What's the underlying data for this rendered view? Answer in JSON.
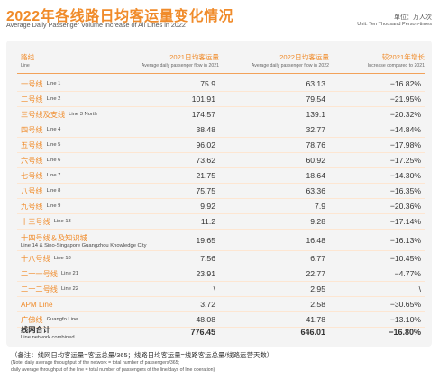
{
  "title": "2022年各线路日均客运量变化情况",
  "subtitle": "Average Daily Passenger Volume Increase of All Lines in 2022",
  "unit_zh": "单位：万人次",
  "unit_en": "Unit: Ten Thousand Person-times",
  "headers": {
    "line_zh": "路线",
    "line_en": "Line",
    "y2021_zh": "2021日均客运量",
    "y2021_en": "Average daily passenger flow in 2021",
    "y2022_zh": "2022日均客运量",
    "y2022_en": "Average daily passenger flow in 2022",
    "growth_zh": "较2021年增长",
    "growth_en": "Increase compared to 2021"
  },
  "rows": [
    {
      "zh": "一号线",
      "en": "Line 1",
      "v2021": "75.9",
      "v2022": "63.13",
      "growth": "−16.82%"
    },
    {
      "zh": "二号线",
      "en": "Line 2",
      "v2021": "101.91",
      "v2022": "79.54",
      "growth": "−21.95%"
    },
    {
      "zh": "三号线及支线",
      "en": "Line 3 North",
      "v2021": "174.57",
      "v2022": "139.1",
      "growth": "−20.32%"
    },
    {
      "zh": "四号线",
      "en": "Line 4",
      "v2021": "38.48",
      "v2022": "32.77",
      "growth": "−14.84%"
    },
    {
      "zh": "五号线",
      "en": "Line 5",
      "v2021": "96.02",
      "v2022": "78.76",
      "growth": "−17.98%"
    },
    {
      "zh": "六号线",
      "en": "Line 6",
      "v2021": "73.62",
      "v2022": "60.92",
      "growth": "−17.25%"
    },
    {
      "zh": "七号线",
      "en": "Line 7",
      "v2021": "21.75",
      "v2022": "18.64",
      "growth": "−14.30%"
    },
    {
      "zh": "八号线",
      "en": "Line 8",
      "v2021": "75.75",
      "v2022": "63.36",
      "growth": "−16.35%"
    },
    {
      "zh": "九号线",
      "en": "Line 9",
      "v2021": "9.92",
      "v2022": "7.9",
      "growth": "−20.36%"
    },
    {
      "zh": "十三号线",
      "en": "Line 13",
      "v2021": "11.2",
      "v2022": "9.28",
      "growth": "−17.14%"
    },
    {
      "zh": "十四号线＆及知识城",
      "en": "Line 14 & Sino-Singapore Guangzhou Knowledge City",
      "v2021": "19.65",
      "v2022": "16.48",
      "growth": "−16.13%",
      "tall": true
    },
    {
      "zh": "十八号线",
      "en": "Line 18",
      "v2021": "7.56",
      "v2022": "6.77",
      "growth": "−10.45%"
    },
    {
      "zh": "二十一号线",
      "en": "Line 21",
      "v2021": "23.91",
      "v2022": "22.77",
      "growth": "−4.77%"
    },
    {
      "zh": "二十二号线",
      "en": "Line 22",
      "v2021": "\\",
      "v2022": "2.95",
      "growth": "\\"
    },
    {
      "zh": "APM Line",
      "en": "",
      "v2021": "3.72",
      "v2022": "2.58",
      "growth": "−30.65%"
    },
    {
      "zh": "广佛线",
      "en": "Guangfo Line",
      "v2021": "48.08",
      "v2022": "41.78",
      "growth": "−13.10%"
    }
  ],
  "total": {
    "zh": "线网合计",
    "en": "Line network combined",
    "v2021": "776.45",
    "v2022": "646.01",
    "growth": "−16.80%"
  },
  "note_zh": "（备注：线网日均客运量=客运总量/365；线路日均客运量=线路客运总量/线路运营天数）",
  "note_en1": "(Note: daily average throughput of the network = total number of passengers/365;",
  "note_en2": "daily average throughput of the line = total number of passengers of the line/days of line operation)"
}
